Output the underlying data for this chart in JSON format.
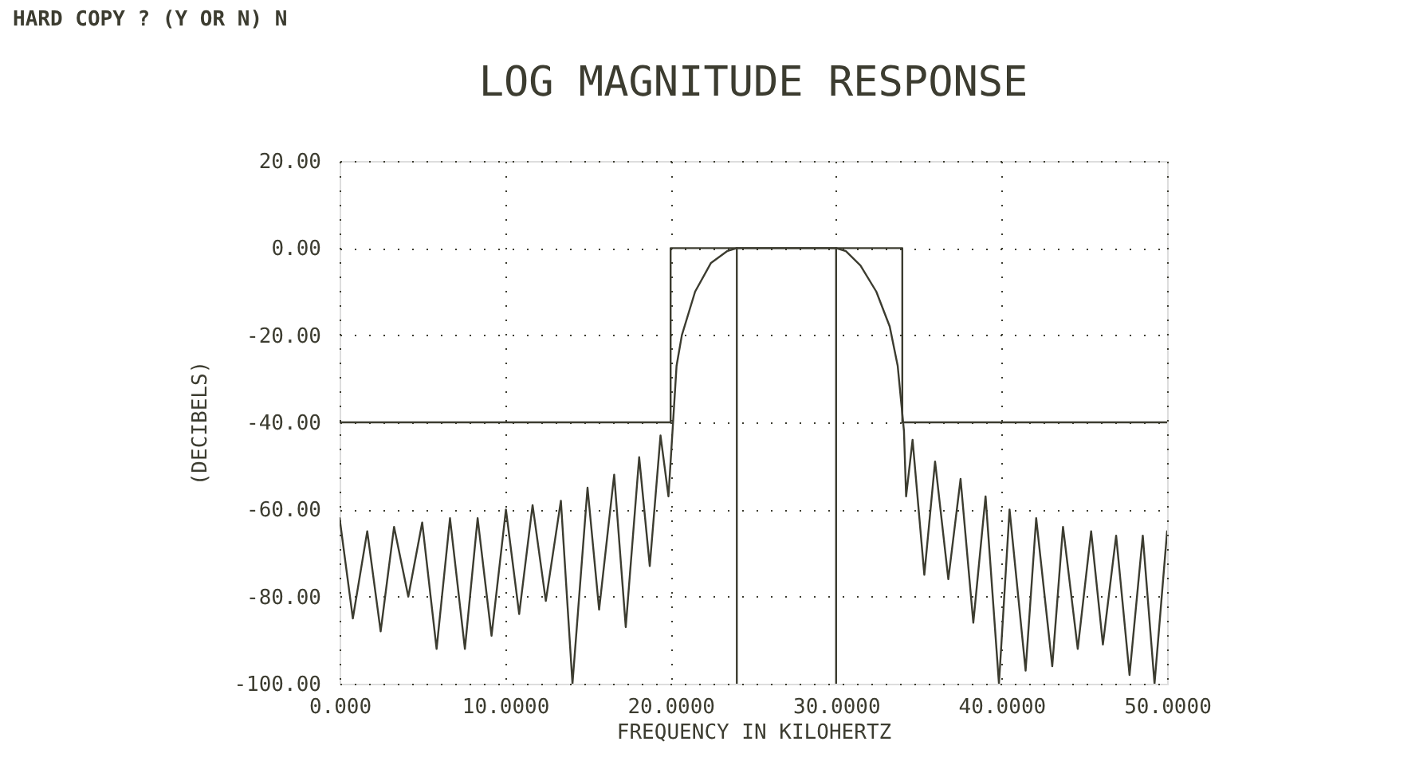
{
  "chart_data": {
    "type": "line",
    "title": "LOG MAGNITUDE RESPONSE",
    "xlabel": "FREQUENCY IN KILOHERTZ",
    "ylabel": "(DECIBELS)",
    "annotations": [
      "HARD COPY ? (Y OR N) N"
    ],
    "xlim": [
      0,
      50
    ],
    "ylim": [
      -100,
      20
    ],
    "xticks": [
      {
        "value": 0,
        "label": "0.000"
      },
      {
        "value": 10,
        "label": "10.0000"
      },
      {
        "value": 20,
        "label": "20.0000"
      },
      {
        "value": 30,
        "label": "30.0000"
      },
      {
        "value": 40,
        "label": "40.0000"
      },
      {
        "value": 50,
        "label": "50.0000"
      }
    ],
    "yticks": [
      {
        "value": -100,
        "label": "-100.00"
      },
      {
        "value": -80,
        "label": "-80.00"
      },
      {
        "value": -60,
        "label": "-60.00"
      },
      {
        "value": -40,
        "label": "-40.00"
      },
      {
        "value": -20,
        "label": "-20.00"
      },
      {
        "value": 0,
        "label": "0.00"
      },
      {
        "value": 20,
        "label": "20.00"
      }
    ],
    "grid": true,
    "line_style": "solid",
    "marker": "none",
    "series": [
      {
        "color": "#3c3c30",
        "x": [
          0,
          20,
          20,
          34,
          34,
          50
        ],
        "values": [
          -40,
          -40,
          0,
          0,
          -40,
          -40
        ]
      },
      {
        "color": "#3c3c30",
        "x": [
          24,
          24
        ],
        "values": [
          -100,
          0
        ]
      },
      {
        "color": "#3c3c30",
        "x": [
          30,
          30
        ],
        "values": [
          -100,
          0
        ]
      },
      {
        "color": "#3c3c30",
        "x": [
          0,
          0.8,
          1.67,
          2.48,
          3.29,
          4.15,
          4.99,
          5.86,
          6.67,
          7.57,
          8.34,
          9.18,
          10.05,
          10.85,
          11.66,
          12.46,
          13.37,
          14.07,
          14.98,
          15.68,
          16.59,
          17.29,
          18.1,
          18.74,
          19.39,
          19.87,
          20.36,
          20.68,
          21.48,
          22.44,
          23.41,
          24,
          30,
          30.59,
          31.47,
          32.43,
          33.24,
          33.72,
          34.1,
          34.23,
          34.62,
          35.33,
          35.98,
          36.78,
          37.52,
          38.29,
          39.03,
          39.84,
          40.48,
          41.45,
          42.09,
          43.06,
          43.71,
          44.6,
          45.41,
          46.12,
          46.92,
          47.73,
          48.53,
          49.24,
          50
        ],
        "values": [
          -62,
          -85,
          -65,
          -88,
          -64,
          -80,
          -63,
          -92,
          -62,
          -92,
          -62,
          -89,
          -60,
          -84,
          -59,
          -81,
          -58,
          -100,
          -55,
          -83,
          -52,
          -87,
          -48,
          -73,
          -43,
          -57,
          -27,
          -20,
          -10,
          -3.4,
          -0.7,
          0,
          0,
          -0.7,
          -4,
          -10,
          -18,
          -27,
          -42,
          -57,
          -44,
          -75,
          -49,
          -76,
          -53,
          -86,
          -57,
          -100,
          -60,
          -97,
          -62,
          -96,
          -64,
          -92,
          -65,
          -91,
          -66,
          -98,
          -66,
          -100,
          -65
        ]
      }
    ]
  }
}
